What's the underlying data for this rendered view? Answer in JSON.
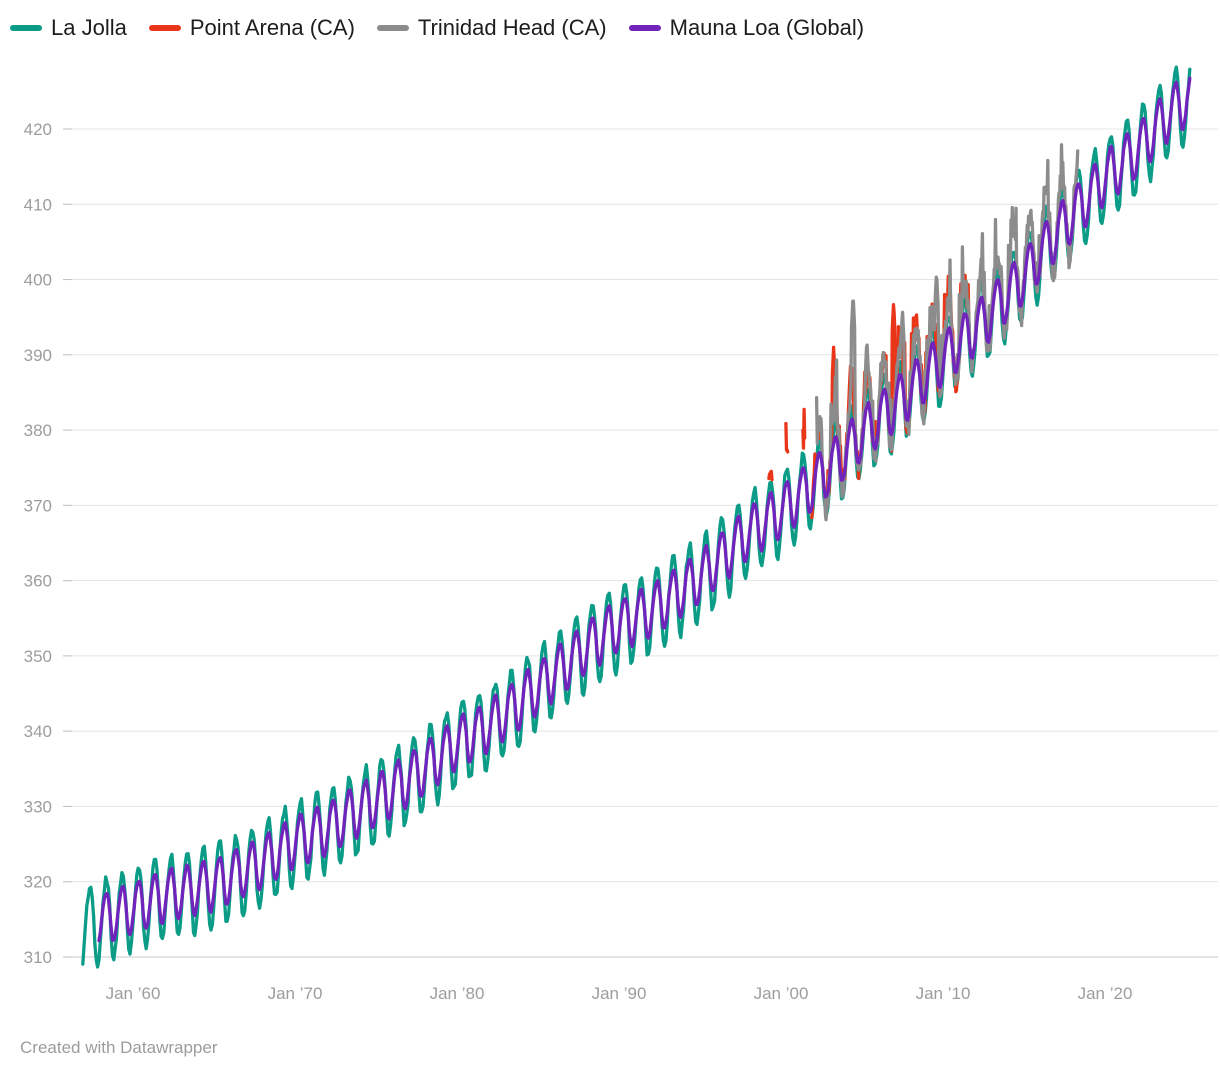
{
  "footer": {
    "attribution": "Created with Datawrapper"
  },
  "chart_data": {
    "type": "line",
    "title": "",
    "xlabel": "",
    "ylabel": "",
    "legend_position": "top-left",
    "grid": "horizontal",
    "y_axis": {
      "min": 308,
      "max": 429,
      "ticks": [
        310,
        320,
        330,
        340,
        350,
        360,
        370,
        380,
        390,
        400,
        410,
        420
      ]
    },
    "x_axis": {
      "min": 1956.5,
      "max": 2025.8,
      "ticks": [
        {
          "year": 1960,
          "label": "Jan ’60"
        },
        {
          "year": 1970,
          "label": "Jan ’70"
        },
        {
          "year": 1980,
          "label": "Jan ’80"
        },
        {
          "year": 1990,
          "label": "Jan ’90"
        },
        {
          "year": 2000,
          "label": "Jan ’00"
        },
        {
          "year": 2010,
          "label": "Jan ’10"
        },
        {
          "year": 2020,
          "label": "Jan ’20"
        }
      ]
    },
    "trend_global_ppm": [
      [
        1957,
        314.6
      ],
      [
        1958,
        315.3
      ],
      [
        1960,
        316.9
      ],
      [
        1962,
        318.5
      ],
      [
        1965,
        320.0
      ],
      [
        1968,
        322.9
      ],
      [
        1970,
        325.7
      ],
      [
        1972,
        327.5
      ],
      [
        1975,
        331.1
      ],
      [
        1978,
        335.4
      ],
      [
        1980,
        338.8
      ],
      [
        1982,
        341.1
      ],
      [
        1985,
        346.1
      ],
      [
        1988,
        351.6
      ],
      [
        1990,
        354.4
      ],
      [
        1992,
        356.4
      ],
      [
        1995,
        360.8
      ],
      [
        1998,
        366.7
      ],
      [
        2000,
        369.5
      ],
      [
        2002,
        373.2
      ],
      [
        2005,
        379.8
      ],
      [
        2008,
        385.6
      ],
      [
        2010,
        389.9
      ],
      [
        2012,
        393.8
      ],
      [
        2015,
        400.8
      ],
      [
        2017,
        406.5
      ],
      [
        2020,
        413.9
      ],
      [
        2022,
        417.5
      ],
      [
        2024,
        422.5
      ],
      [
        2025.5,
        424.8
      ]
    ],
    "seasonal": {
      "peak_month_fraction": 0.37,
      "trough_month_fraction": 0.79,
      "trough_depth_factor": 1.3
    },
    "series": [
      {
        "name": "La Jolla",
        "color": "#0b9c87",
        "start": 1956.9,
        "end": 2025.3,
        "seasonal_amplitude_ppm": 4.8,
        "noise_ppm": 0.5,
        "offset_ppm": 0,
        "samples_per_year": 12,
        "seed": 3
      },
      {
        "name": "Point Arena (CA)",
        "color": "#e93619",
        "start": 1999.25,
        "end": 2011.6,
        "seasonal_amplitude_ppm": 5.0,
        "noise_ppm": 1.7,
        "offset_ppm": 1.8,
        "samples_per_year": 26,
        "seed": 7,
        "event_ppm": 6.0,
        "segments": [
          [
            1999.25,
            1999.45
          ],
          [
            2000.3,
            2000.42
          ],
          [
            2001.35,
            2001.5
          ],
          [
            2001.9,
            2002.1
          ],
          [
            2002.35,
            2002.5
          ],
          [
            2002.75,
            2011.6
          ]
        ],
        "spikes": [
          [
            2003.25,
            391
          ],
          [
            2004.3,
            389
          ],
          [
            2006.95,
            397
          ],
          [
            2008.35,
            396
          ],
          [
            2010.35,
            397
          ]
        ]
      },
      {
        "name": "Trinidad Head (CA)",
        "color": "#8c8c8c",
        "start": 2002.2,
        "end": 2018.35,
        "seasonal_amplitude_ppm": 5.3,
        "noise_ppm": 1.7,
        "offset_ppm": 1.5,
        "samples_per_year": 26,
        "seed": 11,
        "event_ppm": 6.5,
        "spikes": [
          [
            2004.45,
            398
          ],
          [
            2005.3,
            392
          ],
          [
            2007.5,
            396
          ],
          [
            2009.6,
            401
          ],
          [
            2011.3,
            400
          ],
          [
            2013.45,
            403
          ],
          [
            2015.3,
            404
          ],
          [
            2016.4,
            407
          ],
          [
            2017.3,
            408
          ]
        ]
      },
      {
        "name": "Mauna Loa (Global)",
        "color": "#7124bb",
        "start": 1957.9,
        "end": 2025.3,
        "seasonal_amplitude_ppm": 3.0,
        "noise_ppm": 0.18,
        "offset_ppm": 0,
        "samples_per_year": 12,
        "seed": 5
      }
    ]
  }
}
